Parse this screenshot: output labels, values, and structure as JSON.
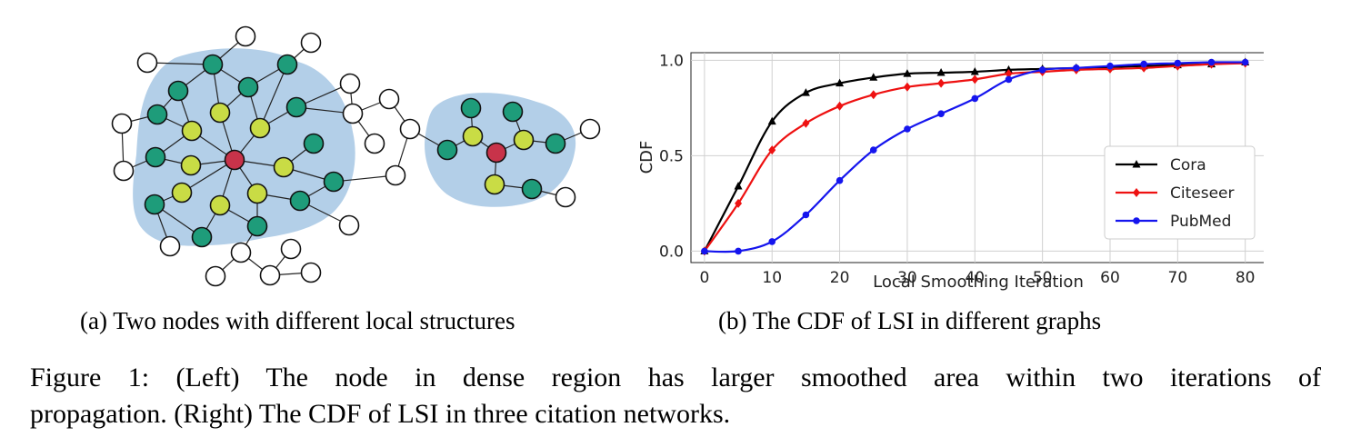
{
  "figure": {
    "panel_a": {
      "caption": "(a) Two nodes with different local structures",
      "colors": {
        "region": "#b3cfe8",
        "hop1": "#1e9c7a",
        "hop2": "#c9dc45",
        "center": "#c8334a",
        "outer": "#ffffff",
        "edge": "#222222"
      }
    },
    "panel_b": {
      "caption": "(b) The CDF of LSI in different graphs"
    },
    "caption_line1": "Figure 1: (Left) The node in dense region has larger smoothed area within two iterations of",
    "caption_line2": "propagation. (Right) The CDF of LSI in three citation networks."
  },
  "chart_data": {
    "type": "line",
    "title": "",
    "xlabel": "Local Smoothing Iteration",
    "ylabel": "CDF",
    "xlim": [
      -2,
      83
    ],
    "ylim": [
      -0.06,
      1.04
    ],
    "xticks": [
      0,
      10,
      20,
      30,
      40,
      50,
      60,
      70,
      80
    ],
    "yticks": [
      0.0,
      0.5,
      1.0
    ],
    "ytick_labels": [
      "0.0",
      "0.5",
      "1.0"
    ],
    "grid": true,
    "legend_position": "lower-right",
    "series": [
      {
        "name": "Cora",
        "color": "#000000",
        "marker": "triangle",
        "x": [
          0,
          5,
          10,
          15,
          20,
          25,
          30,
          35,
          40,
          45,
          50,
          55,
          60,
          65,
          70,
          75,
          80
        ],
        "y": [
          0.0,
          0.34,
          0.68,
          0.83,
          0.88,
          0.91,
          0.93,
          0.935,
          0.94,
          0.95,
          0.955,
          0.96,
          0.965,
          0.97,
          0.975,
          0.98,
          0.99
        ]
      },
      {
        "name": "Citeseer",
        "color": "#ee1111",
        "marker": "diamond",
        "x": [
          0,
          5,
          10,
          15,
          20,
          25,
          30,
          35,
          40,
          45,
          50,
          55,
          60,
          65,
          70,
          75,
          80
        ],
        "y": [
          0.0,
          0.25,
          0.53,
          0.67,
          0.76,
          0.82,
          0.86,
          0.88,
          0.9,
          0.93,
          0.94,
          0.95,
          0.955,
          0.96,
          0.97,
          0.98,
          0.985
        ]
      },
      {
        "name": "PubMed",
        "color": "#1515ee",
        "marker": "circle",
        "x": [
          0,
          5,
          10,
          15,
          20,
          25,
          30,
          35,
          40,
          45,
          50,
          55,
          60,
          65,
          70,
          75,
          80
        ],
        "y": [
          0.0,
          0.0,
          0.05,
          0.19,
          0.37,
          0.53,
          0.64,
          0.72,
          0.8,
          0.9,
          0.95,
          0.96,
          0.97,
          0.98,
          0.985,
          0.99,
          0.99
        ]
      }
    ]
  }
}
